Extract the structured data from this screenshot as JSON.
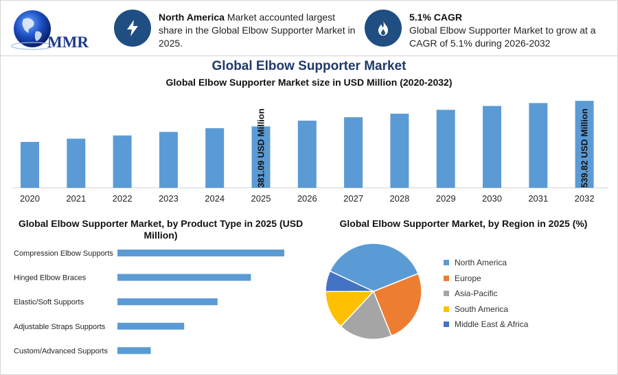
{
  "header": {
    "logo_text": "MMR",
    "info1": {
      "bold": "North America",
      "text": " Market accounted largest share in the Global Elbow Supporter Market in 2025.",
      "icon": "lightning-icon"
    },
    "info2": {
      "bold": "5.1% CAGR",
      "text": "Global Elbow Supporter Market to grow at a CAGR of 5.1% during 2026-2032",
      "icon": "flame-icon"
    }
  },
  "main_title": "Global Elbow Supporter Market",
  "colors": {
    "bar": "#5b9bd5",
    "icon_bg": "#1f4e82",
    "north_america": "#5b9bd5",
    "europe": "#ed7d31",
    "asia_pacific": "#a5a5a5",
    "south_america": "#ffc000",
    "mea": "#4472c4"
  },
  "chart_data": [
    {
      "type": "bar",
      "title": "Global Elbow Supporter Market size in USD Million (2020-2032)",
      "categories": [
        "2020",
        "2021",
        "2022",
        "2023",
        "2024",
        "2025",
        "2026",
        "2027",
        "2028",
        "2029",
        "2030",
        "2031",
        "2032"
      ],
      "values": [
        285,
        305,
        325,
        347,
        370,
        381.09,
        417,
        438,
        460,
        484,
        508,
        526,
        539.82
      ],
      "ylim": [
        0,
        570
      ],
      "annotations": [
        {
          "category": "2025",
          "label": "381.09 USD Million"
        },
        {
          "category": "2032",
          "label": "539.82 USD Million"
        }
      ]
    },
    {
      "type": "bar",
      "orientation": "horizontal",
      "title": "Global Elbow Supporter Market, by Product Type in 2025 (USD Million)",
      "categories": [
        "Compression Elbow Supports",
        "Hinged Elbow Braces",
        "Elastic/Soft Supports",
        "Adjustable Straps Supports",
        "Custom/Advanced Supports"
      ],
      "values": [
        135,
        108,
        81,
        54,
        27
      ],
      "xlim": [
        0,
        150
      ]
    },
    {
      "type": "pie",
      "title": "Global Elbow Supporter Market, by Region in 2025 (%)",
      "labels": [
        "North America",
        "Europe",
        "Asia-Pacific",
        "South America",
        "Middle East & Africa"
      ],
      "values": [
        37,
        25,
        18,
        13,
        7
      ]
    }
  ]
}
